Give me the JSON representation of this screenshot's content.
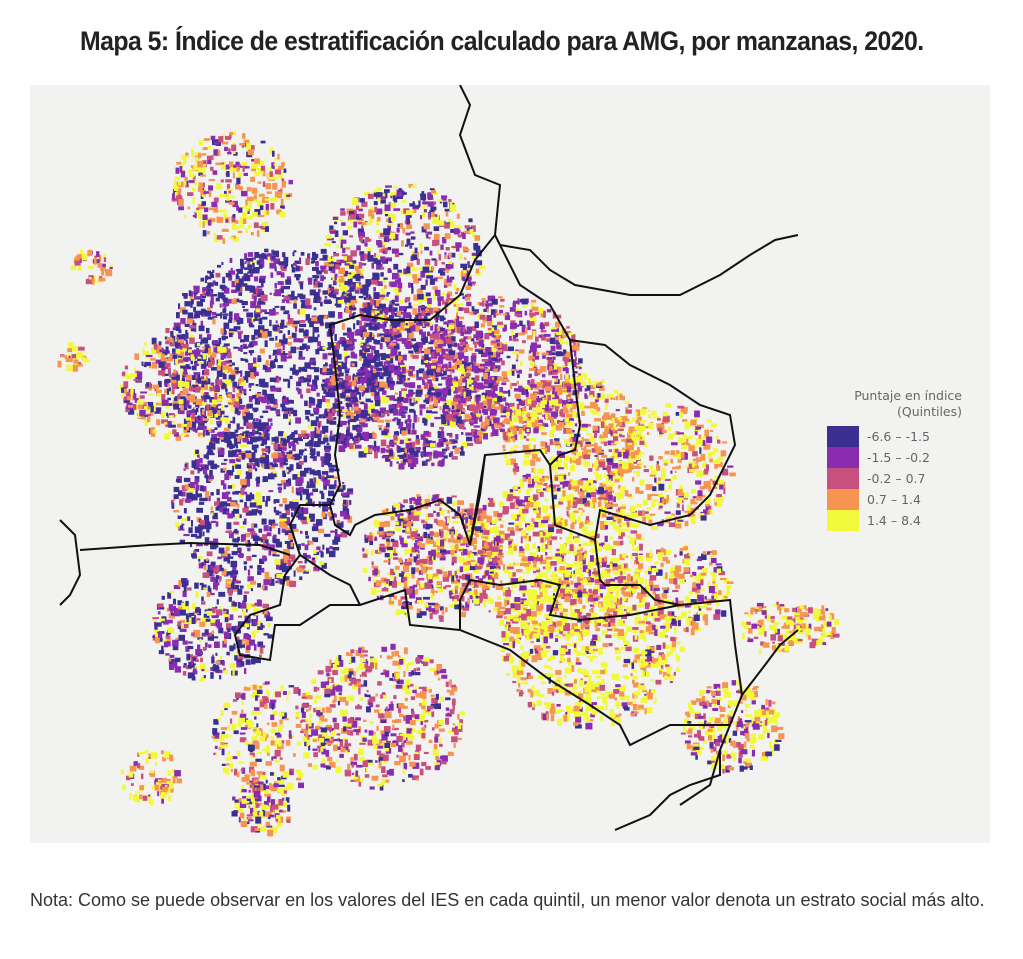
{
  "title": "Mapa 5: Índice de estratificación calculado para AMG, por manzanas, 2020.",
  "legend": {
    "title_line1": "Puntaje en índice",
    "title_line2": "(Quintiles)",
    "items": [
      {
        "label": "-6.6 – -1.5",
        "color": "#3b2f91"
      },
      {
        "label": "-1.5 – -0.2",
        "color": "#8a2cb0"
      },
      {
        "label": "-0.2 – 0.7",
        "color": "#c8507e"
      },
      {
        "label": "0.7 – 1.4",
        "color": "#f69450"
      },
      {
        "label": "1.4 – 8.4",
        "color": "#f0fa3a"
      }
    ]
  },
  "note": "Nota: Como se puede observar en los valores del IES en cada quintil, un menor valor denota un estrato social más alto."
}
